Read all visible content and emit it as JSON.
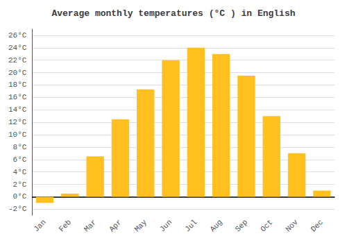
{
  "chart_data": {
    "type": "bar",
    "title": "Average monthly temperatures (°C ) in English",
    "categories": [
      "Jan",
      "Feb",
      "Mar",
      "Apr",
      "May",
      "Jun",
      "Jul",
      "Aug",
      "Sep",
      "Oct",
      "Nov",
      "Dec"
    ],
    "values": [
      -1.0,
      0.5,
      6.5,
      12.5,
      17.3,
      22.0,
      24.0,
      23.0,
      19.5,
      13.0,
      7.0,
      1.0
    ],
    "color": "#FFC020",
    "ylim": [
      -3,
      27
    ],
    "yticks": [
      {
        "value": -2,
        "label": "-2°C"
      },
      {
        "value": 0,
        "label": "0°C"
      },
      {
        "value": 2,
        "label": "2°C"
      },
      {
        "value": 4,
        "label": "4°C"
      },
      {
        "value": 6,
        "label": "6°C"
      },
      {
        "value": 8,
        "label": "8°C"
      },
      {
        "value": 10,
        "label": "10°C"
      },
      {
        "value": 12,
        "label": "12°C"
      },
      {
        "value": 14,
        "label": "14°C"
      },
      {
        "value": 16,
        "label": "16°C"
      },
      {
        "value": 18,
        "label": "18°C"
      },
      {
        "value": 20,
        "label": "20°C"
      },
      {
        "value": 22,
        "label": "22°C"
      },
      {
        "value": 24,
        "label": "24°C"
      },
      {
        "value": 26,
        "label": "26°C"
      }
    ],
    "grid": true
  }
}
